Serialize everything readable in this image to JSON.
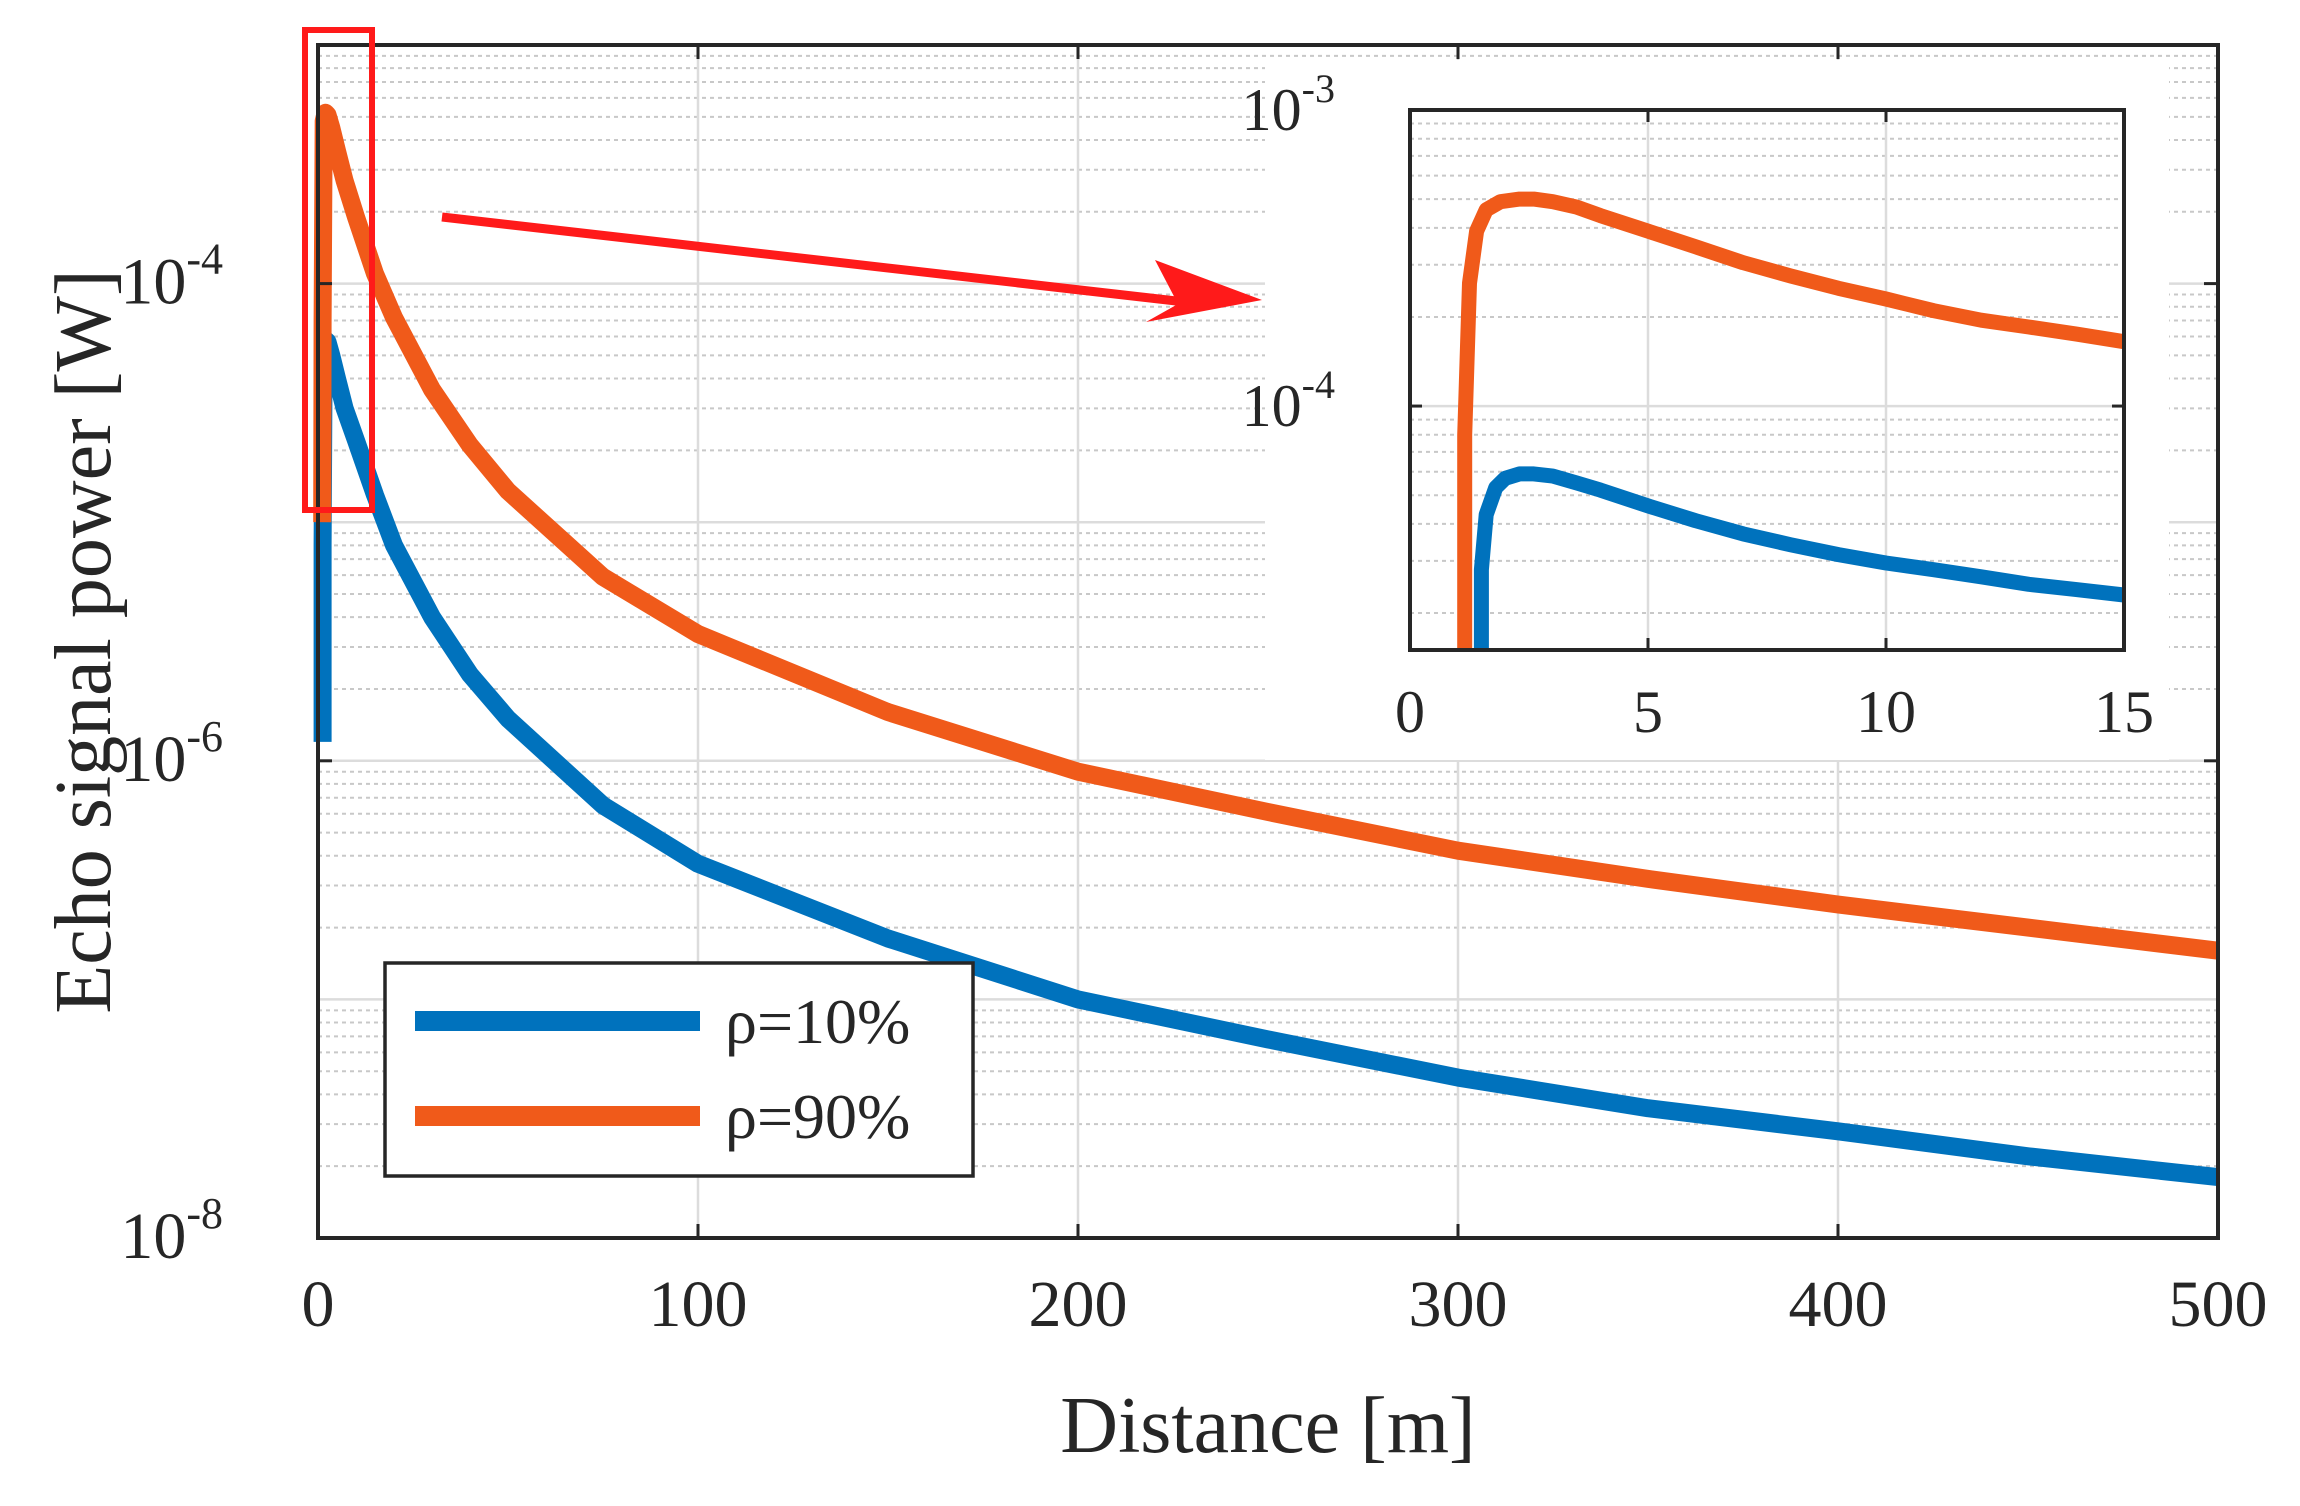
{
  "chart_data": [
    {
      "id": "main",
      "type": "line",
      "xlabel": "Distance [m]",
      "ylabel": "Echo signal power [W]",
      "xscale": "linear",
      "yscale": "log",
      "xlim": [
        0,
        500
      ],
      "ylim": [
        1e-08,
        0.001
      ],
      "grid": true,
      "minor_grid": true,
      "x_ticks": [
        0,
        100,
        200,
        300,
        400,
        500
      ],
      "x_tick_labels": [
        "0",
        "100",
        "200",
        "300",
        "400",
        "500"
      ],
      "y_ticks": [
        1e-08,
        1e-06,
        0.0001
      ],
      "y_tick_base": [
        "10",
        "10",
        "10"
      ],
      "y_tick_exp": [
        "-8",
        "-6",
        "-4"
      ],
      "legend_position": "bottom-left",
      "series": [
        {
          "name": "ρ=10%",
          "color": "#0072BD",
          "x": [
            1.2,
            1.2,
            1.5,
            2,
            2.5,
            3.5,
            5,
            7,
            10,
            15,
            20,
            30,
            40,
            50,
            75,
            100,
            150,
            200,
            250,
            300,
            350,
            400,
            450,
            500
          ],
          "y": [
            1.2e-06,
            8e-06,
            5.5e-05,
            5.8e-05,
            5.7e-05,
            5e-05,
            4e-05,
            3e-05,
            2.2e-05,
            1.3e-05,
            8e-06,
            4e-06,
            2.3e-06,
            1.5e-06,
            6.5e-07,
            3.7e-07,
            1.8e-07,
            1e-07,
            6.8e-08,
            4.7e-08,
            3.5e-08,
            2.8e-08,
            2.2e-08,
            1.8e-08
          ]
        },
        {
          "name": "ρ=90%",
          "color": "#F05A1A",
          "x": [
            1.1,
            1.2,
            1.5,
            2,
            2.5,
            3.5,
            5,
            7,
            10,
            15,
            20,
            30,
            40,
            50,
            75,
            100,
            150,
            200,
            250,
            300,
            350,
            400,
            450,
            500
          ],
          "y": [
            1e-05,
            7e-05,
            0.00048,
            0.00052,
            0.00051,
            0.00045,
            0.00036,
            0.00027,
            0.00019,
            0.00011,
            7.2e-05,
            3.6e-05,
            2.1e-05,
            1.35e-05,
            5.9e-06,
            3.4e-06,
            1.6e-06,
            9e-07,
            6.1e-07,
            4.2e-07,
            3.2e-07,
            2.5e-07,
            2e-07,
            1.6e-07
          ]
        }
      ],
      "annotations": [
        "highlight-box over x 0 to 15",
        "arrow pointing to inset"
      ]
    },
    {
      "id": "inset",
      "type": "line",
      "xscale": "linear",
      "yscale": "log",
      "xlim": [
        0,
        15
      ],
      "ylim": [
        1.5e-05,
        0.001
      ],
      "grid": true,
      "x_ticks": [
        0,
        5,
        10,
        15
      ],
      "x_tick_labels": [
        "0",
        "5",
        "10",
        "15"
      ],
      "y_ticks": [
        0.0001,
        0.001
      ],
      "y_tick_base": [
        "10",
        "10"
      ],
      "y_tick_exp": [
        "-4",
        "-3"
      ],
      "series": [
        {
          "name": "ρ=10%",
          "color": "#0072BD",
          "x": [
            1.5,
            1.5,
            1.6,
            1.8,
            2.0,
            2.3,
            2.6,
            3.0,
            3.5,
            4,
            5,
            6,
            7,
            8,
            9,
            10,
            11,
            12,
            13,
            14,
            15
          ],
          "y": [
            1.5e-05,
            2.8e-05,
            4.3e-05,
            5.3e-05,
            5.7e-05,
            5.9e-05,
            5.9e-05,
            5.8e-05,
            5.5e-05,
            5.2e-05,
            4.6e-05,
            4.1e-05,
            3.7e-05,
            3.4e-05,
            3.15e-05,
            2.95e-05,
            2.8e-05,
            2.65e-05,
            2.5e-05,
            2.4e-05,
            2.3e-05
          ]
        },
        {
          "name": "ρ=90%",
          "color": "#F05A1A",
          "x": [
            1.15,
            1.15,
            1.25,
            1.4,
            1.6,
            1.9,
            2.3,
            2.6,
            3.0,
            3.5,
            4,
            5,
            6,
            7,
            8,
            9,
            10,
            11,
            12,
            13,
            14,
            15
          ],
          "y": [
            1.5e-05,
            8e-05,
            0.00026,
            0.00039,
            0.00046,
            0.00049,
            0.0005,
            0.0005,
            0.00049,
            0.00047,
            0.00044,
            0.00039,
            0.000345,
            0.000305,
            0.000275,
            0.00025,
            0.00023,
            0.00021,
            0.000195,
            0.000185,
            0.000175,
            0.000165
          ]
        }
      ]
    }
  ]
}
